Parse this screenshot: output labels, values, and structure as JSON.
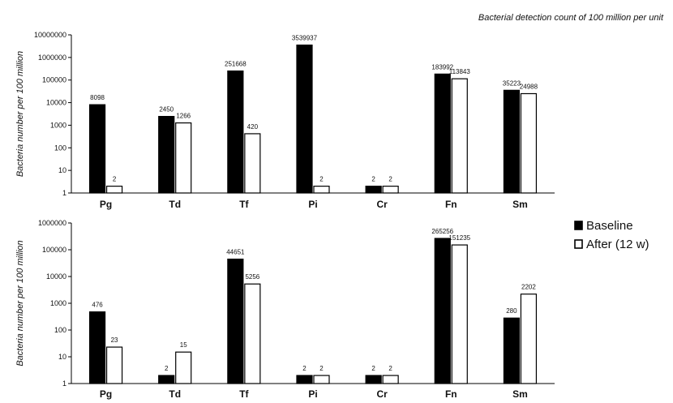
{
  "caption": "Bacterial detection count of 100 million per unit",
  "legend": [
    {
      "label": "Baseline",
      "color": "#000000",
      "fill": "solid"
    },
    {
      "label": "After (12 w)",
      "color": "#000000",
      "fill": "hollow"
    }
  ],
  "chart_data": [
    {
      "type": "bar",
      "ylabel": "Bacteria number per 100 million",
      "yscale": "log",
      "ylim": [
        1,
        10000000
      ],
      "yticks": [
        "1",
        "10",
        "100",
        "1000",
        "10000",
        "100000",
        "1000000",
        "10000000"
      ],
      "categories": [
        "Pg",
        "Td",
        "Tf",
        "Pi",
        "Cr",
        "Fn",
        "Sm"
      ],
      "series": [
        {
          "name": "Baseline",
          "values": [
            8098,
            2450,
            251668,
            3539937,
            2,
            183992,
            35223
          ]
        },
        {
          "name": "After (12 w)",
          "values": [
            2,
            1266,
            420,
            2,
            2,
            113843,
            24988
          ]
        }
      ]
    },
    {
      "type": "bar",
      "ylabel": "Bacteria number per 100 million",
      "yscale": "log",
      "ylim": [
        1,
        1000000
      ],
      "yticks": [
        "1",
        "10",
        "100",
        "1000",
        "10000",
        "100000",
        "1000000"
      ],
      "categories": [
        "Pg",
        "Td",
        "Tf",
        "Pi",
        "Cr",
        "Fn",
        "Sm"
      ],
      "series": [
        {
          "name": "Baseline",
          "values": [
            476,
            2,
            44651,
            2,
            2,
            265256,
            280
          ]
        },
        {
          "name": "After (12 w)",
          "values": [
            23,
            15,
            5256,
            2,
            2,
            151235,
            2202
          ]
        }
      ]
    }
  ]
}
